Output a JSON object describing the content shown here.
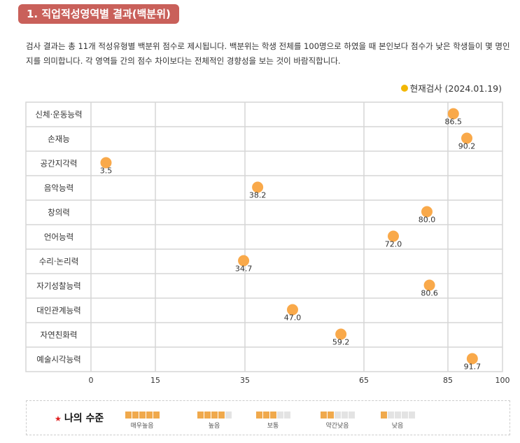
{
  "header": {
    "title": "1. 직업적성영역별 결과(백분위)"
  },
  "description": "검사 결과는 총 11개 적성유형별 백분위 점수로 제시됩니다. 백분위는 학생 전체를 100명으로 하였을 때 본인보다 점수가 낮은 학생들이 몇 명인지를 의미합니다. 각 영역들 간의 점수 차이보다는 전체적인 경향성을 보는 것이 바람직합니다.",
  "chart_data": {
    "type": "scatter",
    "legend": [
      {
        "name": "현재검사 (2024.01.19)",
        "color": "#f2b705"
      }
    ],
    "legend_label": "현재검사 (2024.01.19)",
    "categories": [
      "신체·운동능력",
      "손재능",
      "공간지각력",
      "음악능력",
      "창의력",
      "언어능력",
      "수리·논리력",
      "자기성찰능력",
      "대인관계능력",
      "자연친화력",
      "예술시각능력"
    ],
    "values": [
      86.5,
      90.2,
      3.5,
      38.2,
      80.0,
      72.0,
      34.7,
      80.6,
      47.0,
      59.2,
      91.7
    ],
    "value_labels": [
      "86.5",
      "90.2",
      "3.5",
      "38.2",
      "80.0",
      "72.0",
      "34.7",
      "80.6",
      "47.0",
      "59.2",
      "91.7"
    ],
    "xticks": [
      0,
      15,
      35,
      65,
      85,
      100
    ],
    "xlim": [
      0,
      100
    ],
    "point_color": "#f9a94a",
    "grid": true
  },
  "level_legend": {
    "title": "나의 수준",
    "levels": [
      {
        "label": "매우높음",
        "filled": 5
      },
      {
        "label": "높음",
        "filled": 4
      },
      {
        "label": "보통",
        "filled": 3
      },
      {
        "label": "약간낮음",
        "filled": 2
      },
      {
        "label": "낮음",
        "filled": 1
      }
    ]
  }
}
